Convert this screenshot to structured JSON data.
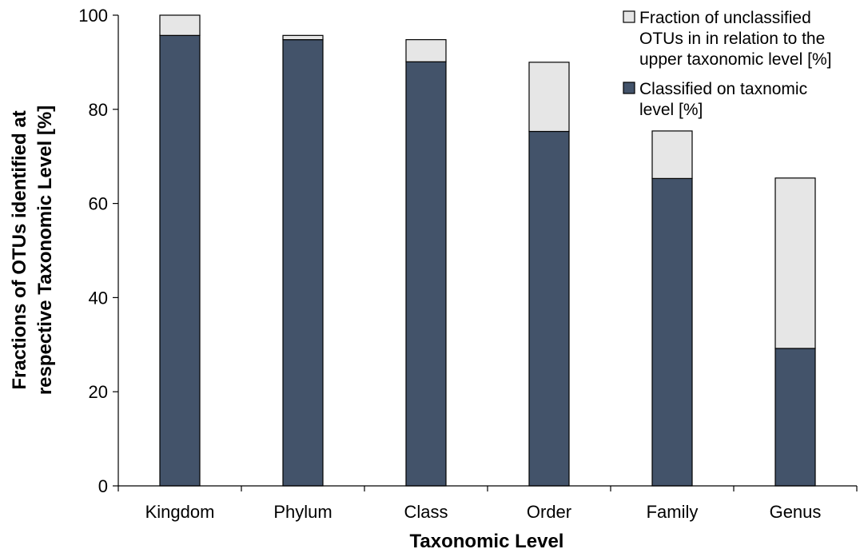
{
  "chart_data": {
    "type": "bar",
    "stacked": true,
    "categories": [
      "Kingdom",
      "Phylum",
      "Class",
      "Order",
      "Family",
      "Genus"
    ],
    "series": [
      {
        "name": "Classified on taxnomic level [%]",
        "values": [
          95.7,
          94.8,
          90.1,
          75.3,
          65.3,
          29.2
        ],
        "color": "#43536a"
      },
      {
        "name": "Fraction of unclassified OTUs in in relation to the upper taxonomic level [%]",
        "values": [
          4.3,
          0.9,
          4.7,
          14.7,
          10.1,
          36.2
        ],
        "color": "#e6e6e6"
      }
    ],
    "xlabel": "Taxonomic Level",
    "ylabel_lines": [
      "Fractions of OTUs identified at",
      "respective  Taxonomic Level [%]"
    ],
    "ylim": [
      0,
      100
    ],
    "yticks": [
      0,
      20,
      40,
      60,
      80,
      100
    ],
    "grid": false,
    "legend": {
      "placement": "top-right",
      "entries": [
        {
          "series": 1,
          "lines": [
            "Fraction of unclassified",
            "OTUs in in relation to the",
            "upper taxonomic level [%]"
          ]
        },
        {
          "series": 0,
          "lines": [
            "Classified on taxnomic",
            "level [%]"
          ]
        }
      ]
    }
  }
}
